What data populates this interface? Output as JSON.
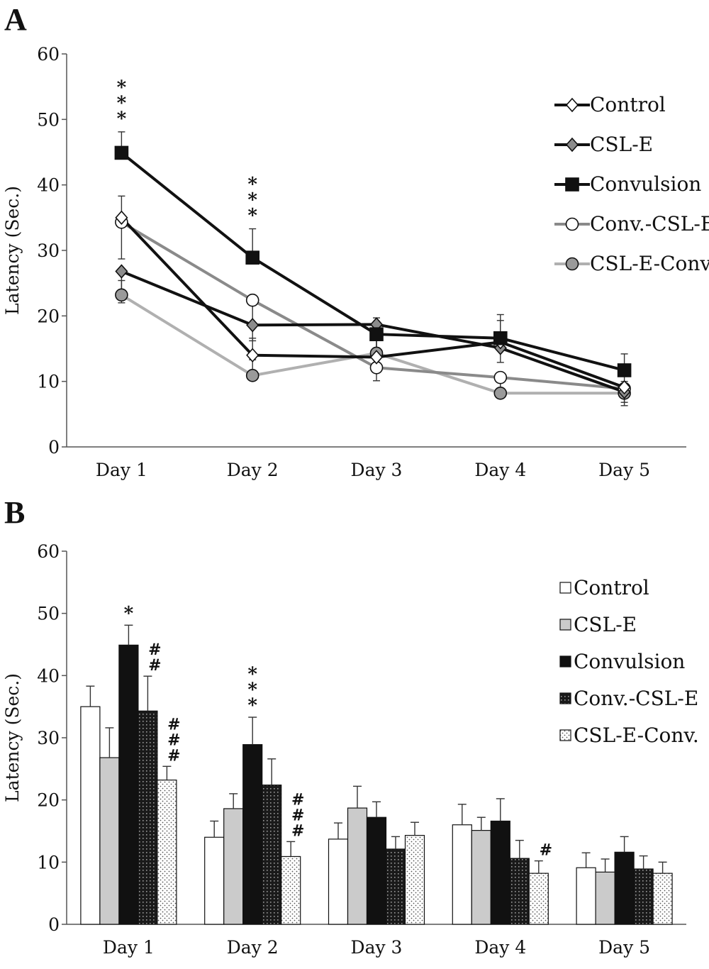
{
  "chart_data": [
    {
      "type": "line",
      "panel_label": "A",
      "categories": [
        "Day 1",
        "Day 2",
        "Day 3",
        "Day 4",
        "Day 5"
      ],
      "ylabel": "Latency (Sec.)",
      "ylim": [
        0,
        60
      ],
      "yticks": [
        "0",
        "10",
        "20",
        "30",
        "40",
        "50",
        "60"
      ],
      "grid": false,
      "legend_position": "right",
      "series": [
        {
          "name": "Control",
          "values": [
            35,
            14,
            13.7,
            16,
            9.1
          ],
          "errors": [
            3.3,
            2.6,
            2.6,
            3.3,
            2.2
          ],
          "color": "#111111",
          "marker": "diamond",
          "marker_fill": "#ffffff"
        },
        {
          "name": "CSL-E",
          "values": [
            26.8,
            18.6,
            18.7,
            15.1,
            8.4
          ],
          "errors": [
            4.8,
            2.4,
            3.6,
            2.2,
            2.1
          ],
          "color": "#111111",
          "marker": "diamond",
          "marker_fill": "#8c8c8c"
        },
        {
          "name": "Convulsion",
          "values": [
            44.9,
            28.9,
            17.2,
            16.6,
            11.7
          ],
          "errors": [
            3.2,
            4.4,
            2.5,
            3.6,
            2.5
          ],
          "color": "#111111",
          "marker": "square",
          "marker_fill": "#111111"
        },
        {
          "name": "Conv.-CSL-E",
          "values": [
            34.3,
            22.4,
            12.1,
            10.6,
            8.9
          ],
          "errors": [
            5.6,
            4.2,
            2.0,
            2.9,
            2.1
          ],
          "color": "#8a8a8a",
          "marker": "circle",
          "marker_fill": "#ffffff"
        },
        {
          "name": "CSL-E-Conv.",
          "values": [
            23.2,
            10.9,
            14.3,
            8.2,
            8.2
          ],
          "errors": [
            2.2,
            2.4,
            2.1,
            2.0,
            1.8
          ],
          "color": "#b0b0b0",
          "marker": "circle",
          "marker_fill": "#9a9a9a"
        }
      ],
      "annotations": [
        {
          "category": "Day 1",
          "series": "Convulsion",
          "text": "***"
        },
        {
          "category": "Day 2",
          "series": "Convulsion",
          "text": "***"
        }
      ]
    },
    {
      "type": "bar",
      "panel_label": "B",
      "categories": [
        "Day 1",
        "Day 2",
        "Day 3",
        "Day 4",
        "Day 5"
      ],
      "ylabel": "Latency (Sec.)",
      "ylim": [
        0,
        60
      ],
      "yticks": [
        "0",
        "10",
        "20",
        "30",
        "40",
        "50",
        "60"
      ],
      "grid": false,
      "legend_position": "right",
      "series": [
        {
          "name": "Control",
          "values": [
            35,
            14,
            13.7,
            16,
            9.1
          ],
          "errors": [
            3.3,
            2.6,
            2.6,
            3.3,
            2.4
          ],
          "fill": "white"
        },
        {
          "name": "CSL-E",
          "values": [
            26.8,
            18.6,
            18.7,
            15.1,
            8.4
          ],
          "errors": [
            4.8,
            2.4,
            3.5,
            2.1,
            2.1
          ],
          "fill": "gray"
        },
        {
          "name": "Convulsion",
          "values": [
            44.9,
            28.9,
            17.2,
            16.6,
            11.6
          ],
          "errors": [
            3.2,
            4.4,
            2.5,
            3.6,
            2.5
          ],
          "fill": "black"
        },
        {
          "name": "Conv.-CSL-E",
          "values": [
            34.3,
            22.4,
            12.1,
            10.6,
            8.9
          ],
          "errors": [
            5.6,
            4.2,
            2.0,
            2.9,
            2.1
          ],
          "fill": "dark-dots"
        },
        {
          "name": "CSL-E-Conv.",
          "values": [
            23.2,
            10.9,
            14.3,
            8.2,
            8.2
          ],
          "errors": [
            2.2,
            2.4,
            2.1,
            2.0,
            1.8
          ],
          "fill": "light-dots"
        }
      ],
      "annotations": [
        {
          "category": "Day 1",
          "series": "Convulsion",
          "text": "*"
        },
        {
          "category": "Day 1",
          "series": "Conv.-CSL-E",
          "text": "##"
        },
        {
          "category": "Day 1",
          "series": "CSL-E-Conv.",
          "text": "###"
        },
        {
          "category": "Day 2",
          "series": "Convulsion",
          "text": "***"
        },
        {
          "category": "Day 2",
          "series": "CSL-E-Conv.",
          "text": "###"
        },
        {
          "category": "Day 4",
          "series": "CSL-E-Conv.",
          "text": "#"
        }
      ]
    }
  ]
}
